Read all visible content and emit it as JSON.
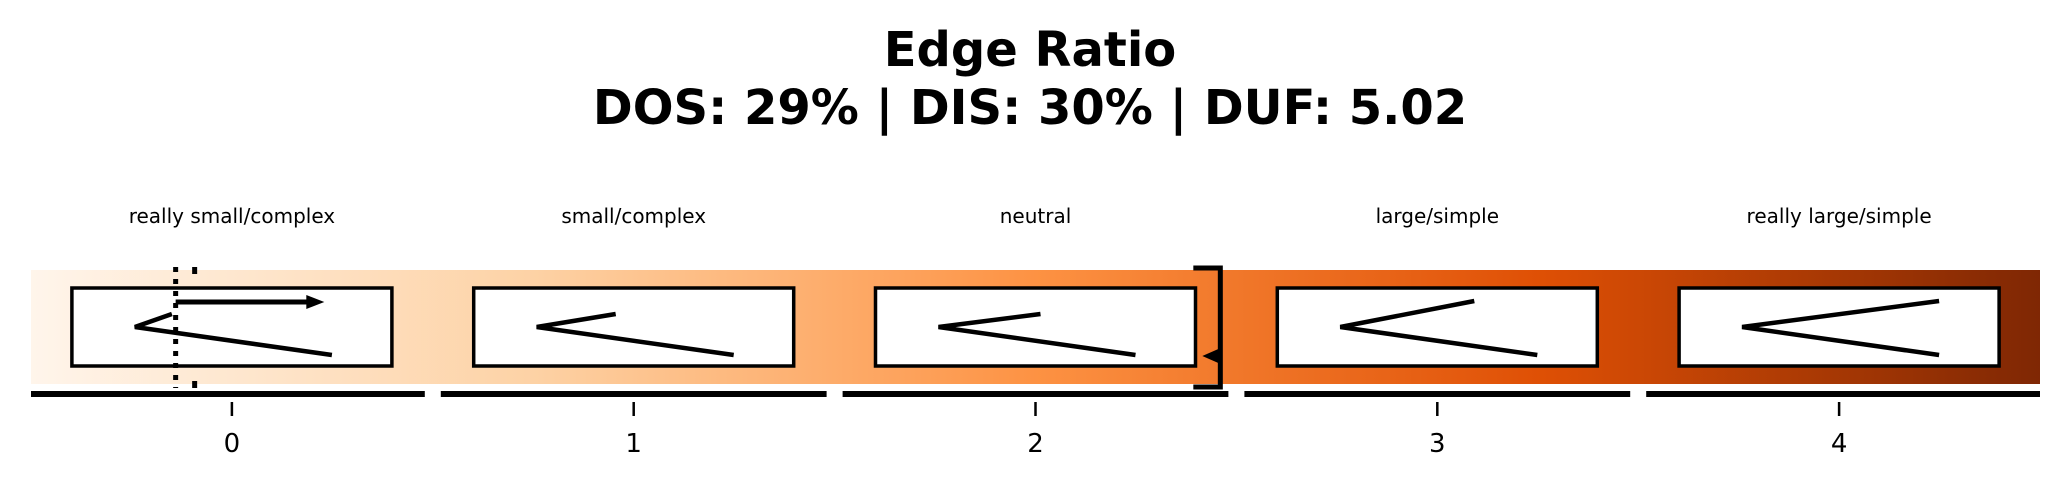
{
  "title": "Edge Ratio",
  "subtitle": "DOS: 29% | DIS: 30% | DUF: 5.02",
  "chart_data": {
    "type": "gradient-scale",
    "title": "Edge Ratio",
    "subtitle": "DOS: 29% | DIS: 30% | DUF: 5.02",
    "xlim": [
      -0.5,
      4.5
    ],
    "categories": [
      "really small/complex",
      "small/complex",
      "neutral",
      "large/simple",
      "really large/simple"
    ],
    "tick_values": [
      0,
      1,
      2,
      3,
      4
    ],
    "tick_labels": [
      "0",
      "1",
      "2",
      "3",
      "4"
    ],
    "glyph_angle_offsets": [
      0.08,
      0.17,
      0.21,
      0.33,
      0.39
    ],
    "markers": {
      "dotted_line_x": -0.14,
      "arrow_start_x": -0.14,
      "arrow_end_x": 0.23,
      "bracket_x": 2.46,
      "triangle_x": 2.46
    },
    "colormap": "Oranges",
    "colors": [
      "#fff5eb",
      "#fdd2a5",
      "#fd9243",
      "#df5005",
      "#7f2704"
    ]
  }
}
